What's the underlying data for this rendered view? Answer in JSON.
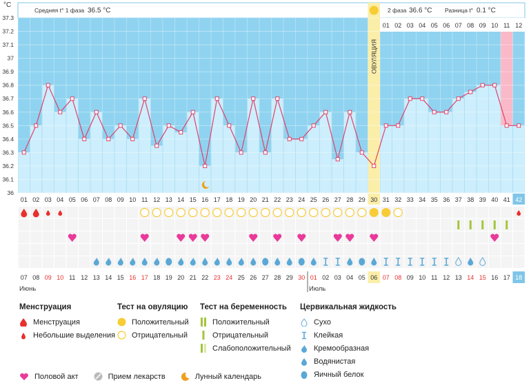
{
  "unit_label": "°C",
  "header": {
    "phase1_label": "Средняя t° 1 фаза",
    "phase1_value": "36.5 °C",
    "phase2_label": "2 фаза",
    "phase2_value": "36.6 °C",
    "diff_label": "Разница t°",
    "diff_value": "0.1 °C"
  },
  "ovulation_label": "ОВУЛЯЦИЯ",
  "colors": {
    "phase_blue": "#8fd3f0",
    "bar_blue": "#cdeefc",
    "line_red": "#e0406a",
    "ovulation_yellow": "#fbeea9",
    "period_pink": "#f9b9c8",
    "accent_teal": "#7fc6e8"
  },
  "chart_data": {
    "type": "line",
    "ylabel": "°C",
    "ylim": [
      36.0,
      37.3
    ],
    "yticks": [
      "37.3",
      "37.2",
      "37.1",
      "37",
      "36.9",
      "36.8",
      "36.7",
      "36.6",
      "36.5",
      "36.4",
      "36.3",
      "36.2",
      "36.1",
      "36"
    ],
    "cycle_days": [
      "01",
      "02",
      "03",
      "04",
      "05",
      "06",
      "07",
      "08",
      "09",
      "10",
      "11",
      "12",
      "13",
      "14",
      "15",
      "16",
      "17",
      "18",
      "19",
      "20",
      "21",
      "22",
      "23",
      "24",
      "25",
      "26",
      "27",
      "28",
      "29",
      "30",
      "31",
      "32",
      "33",
      "34",
      "35",
      "36",
      "37",
      "38",
      "39",
      "40",
      "41",
      "42"
    ],
    "temperatures": [
      36.3,
      36.5,
      36.8,
      36.6,
      36.7,
      36.4,
      36.6,
      36.4,
      36.5,
      36.4,
      36.7,
      36.35,
      36.5,
      36.45,
      36.6,
      36.2,
      36.7,
      36.5,
      36.3,
      36.7,
      36.3,
      36.7,
      36.4,
      36.4,
      36.5,
      36.6,
      36.25,
      36.6,
      36.3,
      36.2,
      36.5,
      36.5,
      36.7,
      36.7,
      36.6,
      36.6,
      36.7,
      36.75,
      36.8,
      36.8,
      36.5,
      36.5
    ],
    "ovulation_day": 30,
    "phase2_top_numbers": [
      "01",
      "02",
      "03",
      "04",
      "05",
      "06",
      "07",
      "08",
      "09",
      "10",
      "11",
      "12"
    ],
    "calendar_dates": [
      "07",
      "08",
      "09",
      "10",
      "11",
      "12",
      "13",
      "14",
      "15",
      "16",
      "17",
      "18",
      "19",
      "20",
      "21",
      "22",
      "23",
      "24",
      "25",
      "26",
      "27",
      "28",
      "29",
      "30",
      "01",
      "02",
      "03",
      "04",
      "05",
      "06",
      "07",
      "08",
      "09",
      "10",
      "11",
      "12",
      "13",
      "14",
      "15",
      "16",
      "17",
      "18"
    ],
    "weekend_indices": [
      2,
      3,
      9,
      10,
      16,
      17,
      23,
      24,
      30,
      31,
      37,
      38
    ],
    "months": [
      {
        "label": "Июнь",
        "start_index": 0
      },
      {
        "label": "Июль",
        "start_index": 24
      }
    ],
    "moon_day": 16,
    "menstruation": {
      "1": "large",
      "2": "large",
      "3": "small",
      "4": "small",
      "42": "small"
    },
    "ovulation_tests": {
      "11": "neg",
      "12": "neg",
      "13": "neg",
      "14": "neg",
      "15": "neg",
      "16": "neg",
      "17": "neg",
      "18": "neg",
      "19": "neg",
      "20": "neg",
      "21": "neg",
      "22": "neg",
      "23": "neg",
      "24": "neg",
      "25": "neg",
      "26": "neg",
      "27": "neg",
      "28": "neg",
      "29": "neg",
      "30": "pos",
      "31": "pos",
      "32": "neg"
    },
    "pregnancy_tests": {
      "37": "pos",
      "38": "pos",
      "39": "pos",
      "40": "pos",
      "41": "pos"
    },
    "intercourse_days": [
      5,
      11,
      14,
      15,
      16,
      20,
      22,
      24,
      27,
      28,
      30,
      40
    ],
    "cervical_fluid": {
      "7": "creamy",
      "8": "creamy",
      "9": "creamy",
      "10": "creamy",
      "11": "watery",
      "12": "creamy",
      "13": "eggwhite",
      "14": "creamy",
      "15": "creamy",
      "16": "watery",
      "17": "creamy",
      "18": "watery",
      "19": "creamy",
      "20": "watery",
      "21": "eggwhite",
      "22": "watery",
      "23": "watery",
      "24": "eggwhite",
      "25": "watery",
      "26": "sticky",
      "27": "sticky",
      "28": "watery",
      "29": "eggwhite",
      "30": "watery",
      "31": "sticky",
      "32": "sticky",
      "33": "sticky",
      "34": "sticky",
      "35": "sticky",
      "36": "sticky",
      "37": "dry",
      "38": "watery",
      "39": "dry"
    }
  },
  "legend": {
    "menstruation": {
      "title": "Менструация",
      "items": [
        "Менструация",
        "Небольшие выделения"
      ]
    },
    "ovulation_test": {
      "title": "Тест на овуляцию",
      "items": [
        "Положительный",
        "Отрицательный"
      ]
    },
    "pregnancy_test": {
      "title": "Тест на беременность",
      "items": [
        "Положительный",
        "Отрицательный",
        "Слабоположительный"
      ]
    },
    "cervical": {
      "title": "Цервикальная жидкость",
      "items": [
        "Сухо",
        "Клейкая",
        "Кремообразная",
        "Водянистая",
        "Яичный белок"
      ]
    },
    "bottom": [
      "Половой акт",
      "Прием лекарств",
      "Лунный календарь"
    ]
  }
}
